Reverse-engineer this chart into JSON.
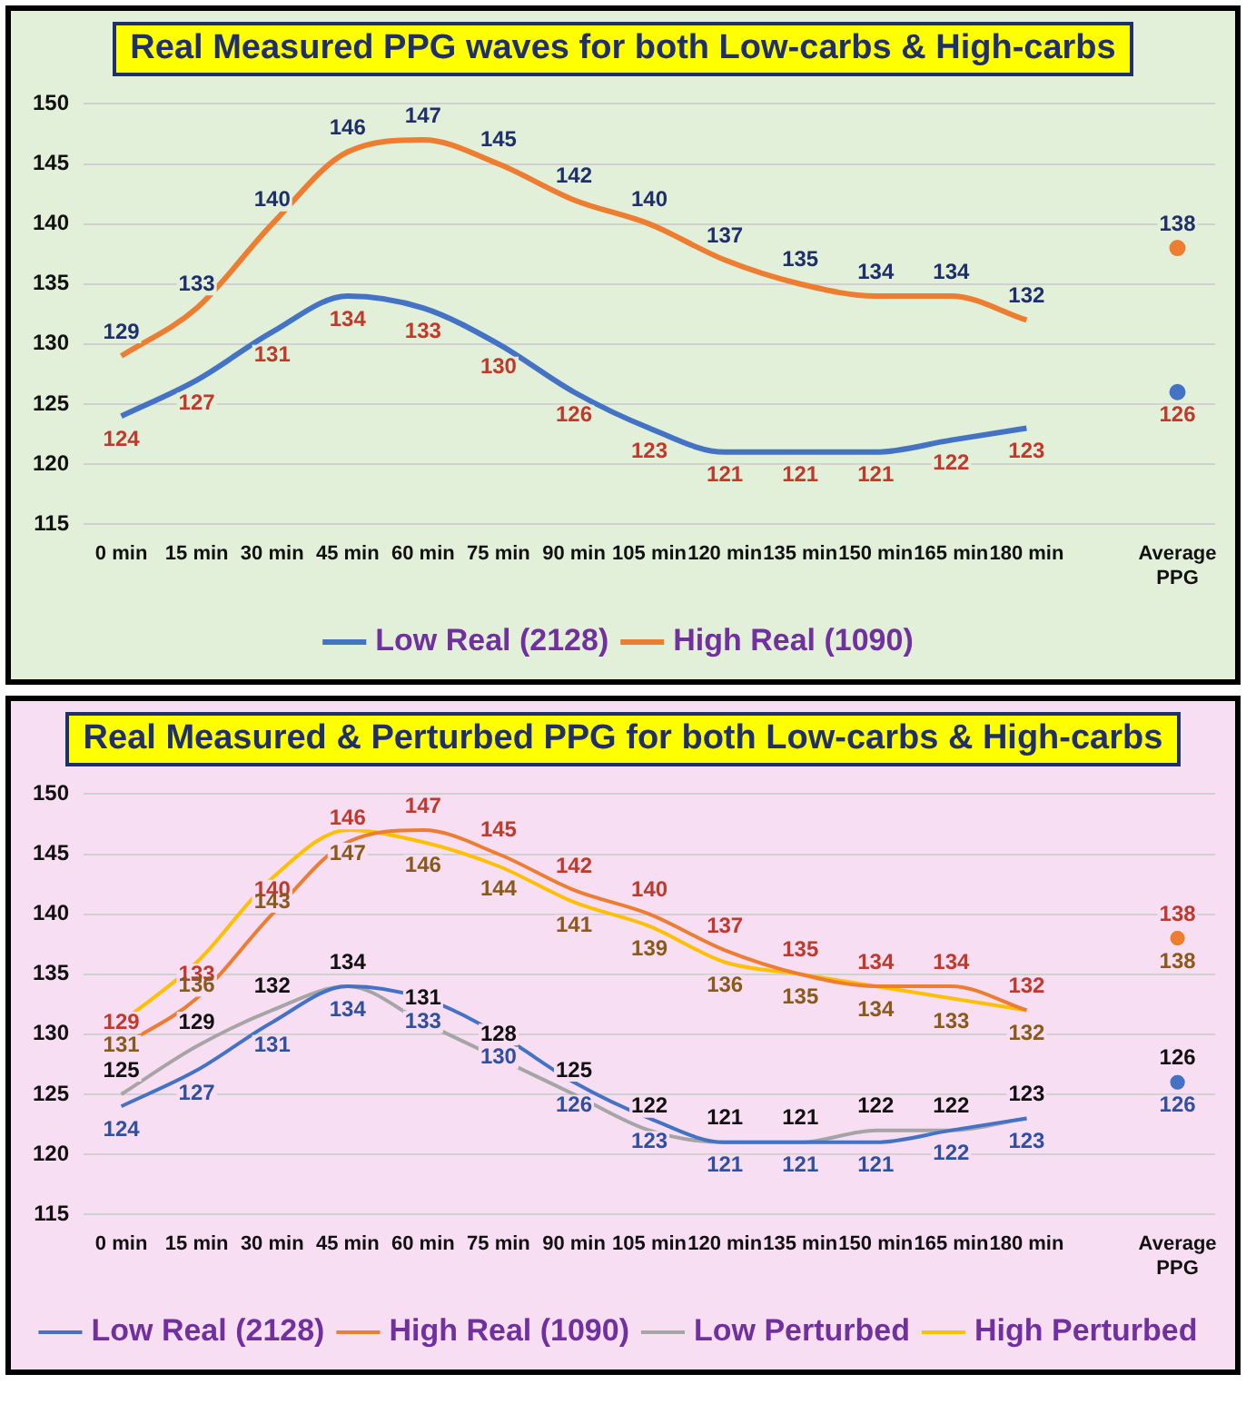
{
  "chart_data": [
    {
      "type": "line",
      "title": "Real Measured PPG waves for both Low-carbs & High-carbs",
      "categories": [
        "0 min",
        "15 min",
        "30 min",
        "45 min",
        "60 min",
        "75 min",
        "90 min",
        "105 min",
        "120 min",
        "135 min",
        "150 min",
        "165 min",
        "180 min",
        null,
        "Average PPG"
      ],
      "series": [
        {
          "name": "Low Real (2128)",
          "color": "#4472c4",
          "values": [
            124,
            127,
            131,
            134,
            133,
            130,
            126,
            123,
            121,
            121,
            121,
            122,
            123,
            null,
            126
          ]
        },
        {
          "name": "High Real (1090)",
          "color": "#ed7d31",
          "values": [
            129,
            133,
            140,
            146,
            147,
            145,
            142,
            140,
            137,
            135,
            134,
            134,
            132,
            null,
            138
          ]
        }
      ],
      "ylim": [
        115,
        150
      ],
      "yticks": [
        115,
        120,
        125,
        130,
        135,
        140,
        145,
        150
      ],
      "grid": "y",
      "legend": "bottom",
      "data_labels": true
    },
    {
      "type": "line",
      "title": "Real Measured & Perturbed PPG for both Low-carbs & High-carbs",
      "categories": [
        "0 min",
        "15 min",
        "30 min",
        "45 min",
        "60 min",
        "75 min",
        "90 min",
        "105 min",
        "120 min",
        "135 min",
        "150 min",
        "165 min",
        "180 min",
        null,
        "Average PPG"
      ],
      "series": [
        {
          "name": "Low Real (2128)",
          "color": "#4472c4",
          "values": [
            124,
            127,
            131,
            134,
            133,
            130,
            126,
            123,
            121,
            121,
            121,
            122,
            123,
            null,
            126
          ]
        },
        {
          "name": "High Real (1090)",
          "color": "#ed7d31",
          "values": [
            129,
            133,
            140,
            146,
            147,
            145,
            142,
            140,
            137,
            135,
            134,
            134,
            132,
            null,
            138
          ]
        },
        {
          "name": "Low Perturbed",
          "color": "#a5a5a5",
          "values": [
            125,
            129,
            132,
            134,
            131,
            128,
            125,
            122,
            121,
            121,
            122,
            122,
            123,
            null,
            126
          ]
        },
        {
          "name": "High Perturbed",
          "color": "#ffc000",
          "values": [
            131,
            136,
            143,
            147,
            146,
            144,
            141,
            139,
            136,
            135,
            134,
            133,
            132,
            null,
            138
          ]
        }
      ],
      "ylim": [
        115,
        150
      ],
      "yticks": [
        115,
        120,
        125,
        130,
        135,
        140,
        145,
        150
      ],
      "grid": "y",
      "legend": "bottom",
      "data_labels": true
    }
  ]
}
